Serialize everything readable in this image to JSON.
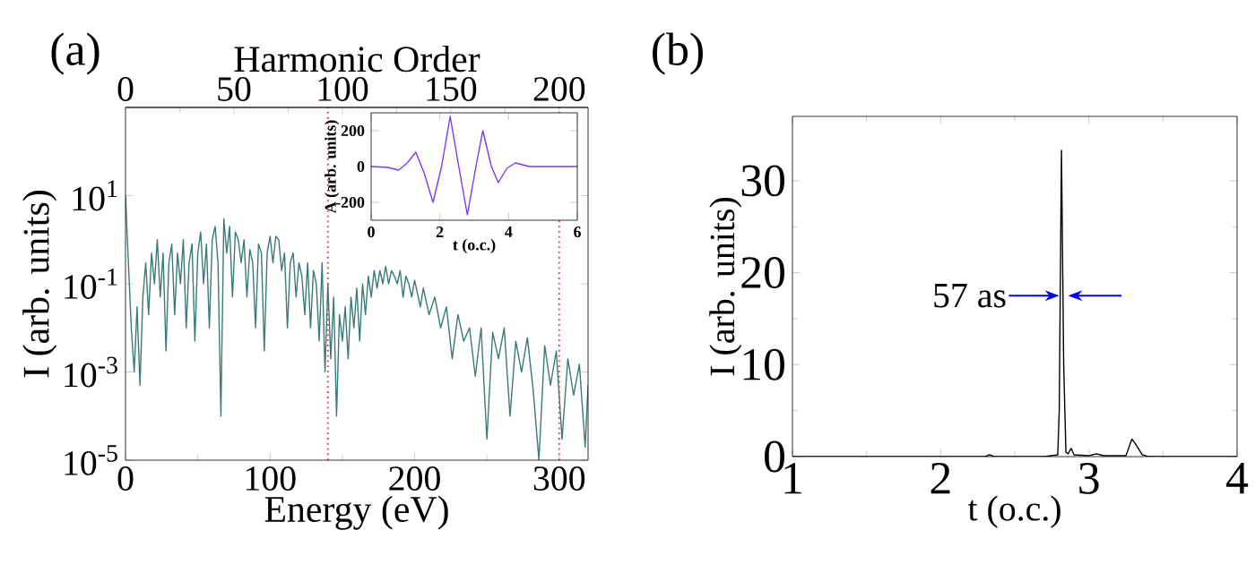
{
  "chart_data": [
    {
      "type": "line",
      "title": "(a)",
      "xlabel": "Energy (eV)",
      "ylabel": "I (arb. units)",
      "x2label": "Harmonic Order",
      "log": "y",
      "xlim": [
        0,
        320
      ],
      "xticks": [
        0,
        100,
        200,
        300
      ],
      "x2lim": [
        0,
        213.3
      ],
      "x2ticks": [
        0,
        50,
        100,
        150,
        200
      ],
      "ylim": [
        1e-05,
        1000
      ],
      "yticks": [
        {
          "value": 10,
          "label": "10$^{1}$"
        },
        {
          "value": 0.1,
          "label": "10$^{-1}$"
        },
        {
          "value": 0.001,
          "label": "10$^{-3}$"
        },
        {
          "value": 1e-05,
          "label": "10$^{-5}$"
        }
      ],
      "ref_lines": [
        {
          "axis": "x",
          "value": 140,
          "color": "#e8303a",
          "line_style": "dotted"
        },
        {
          "axis": "x",
          "value": 300,
          "color": "#e8303a",
          "line_style": "dotted"
        }
      ],
      "series": [
        {
          "color": "#3a7a78",
          "x": [
            0,
            2,
            4,
            6,
            8,
            10,
            12,
            14,
            16,
            18,
            20,
            22,
            24,
            26,
            28,
            30,
            32,
            34,
            36,
            38,
            40,
            42,
            44,
            46,
            48,
            50,
            52,
            54,
            56,
            58,
            60,
            62,
            64,
            66,
            68,
            70,
            72,
            74,
            76,
            78,
            80,
            82,
            84,
            86,
            88,
            90,
            92,
            94,
            96,
            98,
            100,
            102,
            104,
            106,
            108,
            110,
            112,
            114,
            116,
            118,
            120,
            122,
            124,
            126,
            128,
            130,
            132,
            134,
            136,
            138,
            140,
            142,
            144,
            146,
            148,
            150,
            152,
            154,
            156,
            158,
            160,
            162,
            164,
            166,
            168,
            170,
            172,
            174,
            176,
            178,
            180,
            182,
            184,
            186,
            188,
            190,
            192,
            194,
            196,
            198,
            200,
            204,
            206,
            210,
            214,
            218,
            222,
            226,
            230,
            234,
            238,
            242,
            246,
            250,
            254,
            258,
            262,
            266,
            270,
            274,
            278,
            282,
            286,
            290,
            294,
            298,
            302,
            306,
            310,
            314,
            318,
            320
          ],
          "values": [
            10,
            0.3,
            0.01,
            0.001,
            0.03,
            0.0005,
            0.05,
            0.3,
            0.02,
            0.5,
            0.1,
            1,
            0.05,
            0.5,
            0.003,
            0.3,
            0.8,
            0.02,
            0.5,
            0.1,
            1,
            0.01,
            0.3,
            0.8,
            0.005,
            0.5,
            1.5,
            0.1,
            0.8,
            0.01,
            1,
            2,
            0.3,
            0.0001,
            3,
            0.5,
            2,
            0.05,
            1.5,
            1,
            0.3,
            1,
            0.05,
            0.6,
            0.3,
            0.01,
            0.8,
            0.5,
            0.003,
            0.5,
            1.2,
            0.3,
            1.2,
            1,
            0.2,
            0.5,
            0.01,
            0.3,
            0.5,
            0.05,
            0.3,
            0.15,
            0.02,
            0.3,
            0.01,
            0.2,
            0.1,
            0.005,
            0.3,
            0.001,
            0.1,
            0.002,
            0.05,
            0.0001,
            0.02,
            0.005,
            0.03,
            0.002,
            0.05,
            0.01,
            0.08,
            0.005,
            0.1,
            0.02,
            0.15,
            0.05,
            0.2,
            0.08,
            0.2,
            0.1,
            0.25,
            0.1,
            0.2,
            0.15,
            0.1,
            0.2,
            0.05,
            0.15,
            0.1,
            0.05,
            0.12,
            0.03,
            0.08,
            0.02,
            0.05,
            0.01,
            0.03,
            0.002,
            0.02,
            0.005,
            0.01,
            0.0008,
            0.01,
            3e-05,
            0.008,
            0.002,
            0.01,
            0.0001,
            0.005,
            0.001,
            0.006,
            0.0004,
            1e-05,
            0.004,
            0.0005,
            0.003,
            3e-05,
            0.002,
            0.0003,
            0.0015,
            2e-05,
            0.0005
          ]
        }
      ]
    },
    {
      "type": "line",
      "xlabel": "t (o.c.)",
      "ylabel": "A (arb. units)",
      "xlim": [
        0,
        6
      ],
      "xticks": [
        0,
        2,
        4,
        6
      ],
      "ylim": [
        -300,
        300
      ],
      "yticks": [
        -200,
        0,
        200
      ],
      "series": [
        {
          "color": "#7a3cf0",
          "x": [
            0,
            0.5,
            0.8,
            1.05,
            1.3,
            1.55,
            1.8,
            2.05,
            2.3,
            2.55,
            2.8,
            3.05,
            3.25,
            3.5,
            3.7,
            3.95,
            4.2,
            4.6,
            6
          ],
          "values": [
            0,
            -5,
            -20,
            20,
            80,
            -40,
            -200,
            0,
            280,
            0,
            -270,
            0,
            200,
            0,
            -90,
            -10,
            20,
            0,
            0
          ]
        }
      ]
    },
    {
      "type": "line",
      "title": "(b)",
      "xlabel": "t (o.c.)",
      "ylabel": "I (arb. units)",
      "xlim": [
        1,
        4
      ],
      "xticks": [
        1,
        2,
        3,
        4
      ],
      "ylim": [
        0,
        37
      ],
      "yticks": [
        0,
        10,
        20,
        30
      ],
      "annotations": [
        {
          "text": "57 as",
          "x": 2.82,
          "y": 17.5
        }
      ],
      "series": [
        {
          "color": "#000000",
          "x": [
            1,
            2.3,
            2.33,
            2.36,
            2.7,
            2.79,
            2.8,
            2.815,
            2.83,
            2.845,
            2.86,
            2.88,
            2.9,
            3.0,
            3.05,
            3.1,
            3.25,
            3.29,
            3.31,
            3.36,
            3.4,
            4
          ],
          "values": [
            0,
            0,
            0.2,
            0,
            0,
            0.2,
            5,
            33.3,
            10,
            0.5,
            0.3,
            0.9,
            0.2,
            0.1,
            0.3,
            0.1,
            0.1,
            1.9,
            1.5,
            0.2,
            0,
            0
          ]
        }
      ]
    }
  ]
}
